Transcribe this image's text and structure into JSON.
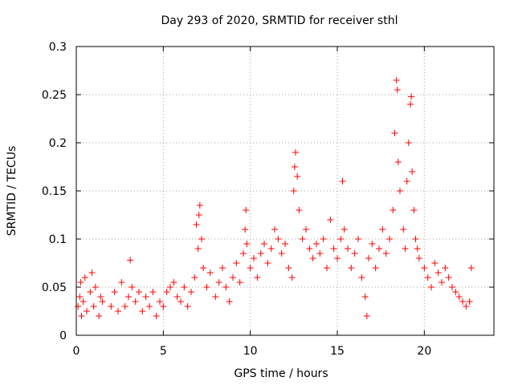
{
  "chart_data": {
    "type": "scatter",
    "title": "Day 293 of 2020, SRMTID for receiver sthl",
    "xlabel": "GPS time / hours",
    "ylabel": "SRMTID / TECUs",
    "xlim": [
      0,
      24
    ],
    "ylim": [
      0,
      0.3
    ],
    "grid": true,
    "x_ticks": [
      0,
      5,
      10,
      15,
      20
    ],
    "x_tick_labels": [
      "0",
      "5",
      "10",
      "15",
      "20"
    ],
    "y_ticks": [
      0,
      0.05,
      0.1,
      0.15,
      0.2,
      0.25,
      0.3
    ],
    "y_tick_labels": [
      "0",
      "0.05",
      "0.1",
      "0.15",
      "0.2",
      "0.25",
      "0.3"
    ],
    "marker": "+",
    "color": "#ff0000",
    "series": [
      {
        "name": "SRMTID",
        "points": [
          [
            0.1,
            0.03
          ],
          [
            0.2,
            0.04
          ],
          [
            0.25,
            0.055
          ],
          [
            0.3,
            0.02
          ],
          [
            0.4,
            0.035
          ],
          [
            0.5,
            0.06
          ],
          [
            0.6,
            0.025
          ],
          [
            0.8,
            0.045
          ],
          [
            0.9,
            0.065
          ],
          [
            1.0,
            0.03
          ],
          [
            1.1,
            0.05
          ],
          [
            1.3,
            0.02
          ],
          [
            1.4,
            0.04
          ],
          [
            1.5,
            0.035
          ],
          [
            2.0,
            0.03
          ],
          [
            2.2,
            0.045
          ],
          [
            2.4,
            0.025
          ],
          [
            2.6,
            0.055
          ],
          [
            2.8,
            0.03
          ],
          [
            3.0,
            0.04
          ],
          [
            3.1,
            0.078
          ],
          [
            3.2,
            0.05
          ],
          [
            3.4,
            0.035
          ],
          [
            3.6,
            0.045
          ],
          [
            3.8,
            0.025
          ],
          [
            4.0,
            0.04
          ],
          [
            4.2,
            0.03
          ],
          [
            4.4,
            0.045
          ],
          [
            4.6,
            0.02
          ],
          [
            4.8,
            0.035
          ],
          [
            5.0,
            0.03
          ],
          [
            5.2,
            0.045
          ],
          [
            5.4,
            0.05
          ],
          [
            5.6,
            0.055
          ],
          [
            5.8,
            0.04
          ],
          [
            6.0,
            0.035
          ],
          [
            6.2,
            0.05
          ],
          [
            6.4,
            0.03
          ],
          [
            6.6,
            0.045
          ],
          [
            6.8,
            0.06
          ],
          [
            6.9,
            0.115
          ],
          [
            7.0,
            0.09
          ],
          [
            7.05,
            0.125
          ],
          [
            7.1,
            0.135
          ],
          [
            7.2,
            0.1
          ],
          [
            7.3,
            0.07
          ],
          [
            7.5,
            0.05
          ],
          [
            7.7,
            0.065
          ],
          [
            8.0,
            0.04
          ],
          [
            8.2,
            0.055
          ],
          [
            8.4,
            0.07
          ],
          [
            8.6,
            0.05
          ],
          [
            8.8,
            0.035
          ],
          [
            9.0,
            0.06
          ],
          [
            9.2,
            0.075
          ],
          [
            9.4,
            0.055
          ],
          [
            9.6,
            0.085
          ],
          [
            9.7,
            0.11
          ],
          [
            9.75,
            0.13
          ],
          [
            9.8,
            0.095
          ],
          [
            10.0,
            0.07
          ],
          [
            10.2,
            0.08
          ],
          [
            10.4,
            0.06
          ],
          [
            10.6,
            0.085
          ],
          [
            10.8,
            0.095
          ],
          [
            11.0,
            0.075
          ],
          [
            11.2,
            0.09
          ],
          [
            11.4,
            0.11
          ],
          [
            11.6,
            0.1
          ],
          [
            11.8,
            0.085
          ],
          [
            12.0,
            0.095
          ],
          [
            12.2,
            0.07
          ],
          [
            12.4,
            0.06
          ],
          [
            12.5,
            0.15
          ],
          [
            12.55,
            0.175
          ],
          [
            12.6,
            0.19
          ],
          [
            12.7,
            0.165
          ],
          [
            12.8,
            0.13
          ],
          [
            13.0,
            0.1
          ],
          [
            13.2,
            0.11
          ],
          [
            13.4,
            0.09
          ],
          [
            13.6,
            0.08
          ],
          [
            13.8,
            0.095
          ],
          [
            14.0,
            0.085
          ],
          [
            14.2,
            0.1
          ],
          [
            14.4,
            0.07
          ],
          [
            14.6,
            0.12
          ],
          [
            14.8,
            0.09
          ],
          [
            15.0,
            0.08
          ],
          [
            15.2,
            0.1
          ],
          [
            15.3,
            0.16
          ],
          [
            15.4,
            0.11
          ],
          [
            15.6,
            0.09
          ],
          [
            15.8,
            0.07
          ],
          [
            16.0,
            0.085
          ],
          [
            16.2,
            0.1
          ],
          [
            16.4,
            0.06
          ],
          [
            16.6,
            0.04
          ],
          [
            16.7,
            0.02
          ],
          [
            16.8,
            0.08
          ],
          [
            17.0,
            0.095
          ],
          [
            17.2,
            0.07
          ],
          [
            17.4,
            0.09
          ],
          [
            17.6,
            0.11
          ],
          [
            17.8,
            0.085
          ],
          [
            18.0,
            0.1
          ],
          [
            18.2,
            0.13
          ],
          [
            18.3,
            0.21
          ],
          [
            18.4,
            0.265
          ],
          [
            18.45,
            0.255
          ],
          [
            18.5,
            0.18
          ],
          [
            18.6,
            0.15
          ],
          [
            18.8,
            0.11
          ],
          [
            18.9,
            0.09
          ],
          [
            19.0,
            0.16
          ],
          [
            19.1,
            0.2
          ],
          [
            19.2,
            0.24
          ],
          [
            19.25,
            0.248
          ],
          [
            19.3,
            0.17
          ],
          [
            19.4,
            0.13
          ],
          [
            19.5,
            0.1
          ],
          [
            19.6,
            0.09
          ],
          [
            19.7,
            0.08
          ],
          [
            20.0,
            0.07
          ],
          [
            20.2,
            0.06
          ],
          [
            20.4,
            0.05
          ],
          [
            20.6,
            0.075
          ],
          [
            20.8,
            0.065
          ],
          [
            21.0,
            0.055
          ],
          [
            21.2,
            0.07
          ],
          [
            21.4,
            0.06
          ],
          [
            21.6,
            0.05
          ],
          [
            21.8,
            0.045
          ],
          [
            22.0,
            0.04
          ],
          [
            22.2,
            0.035
          ],
          [
            22.4,
            0.03
          ],
          [
            22.6,
            0.035
          ],
          [
            22.7,
            0.07
          ]
        ]
      }
    ]
  }
}
